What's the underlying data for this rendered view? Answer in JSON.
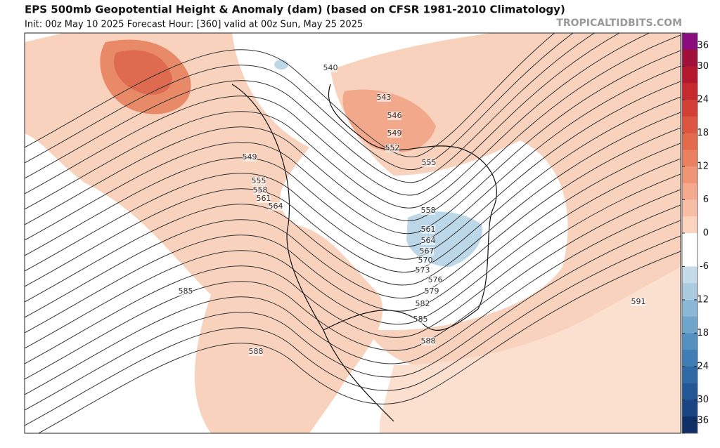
{
  "header": {
    "title": "EPS 500mb Geopotential Height & Anomaly (dam) (based on CFSR 1981-2010 Climatology)",
    "subtitle": "Init: 00z May 10 2025   Forecast Hour: [360]   valid at 00z Sun, May 25 2025",
    "site": "TROPICALTIDBITS.COM"
  },
  "contour_labels": [
    "540",
    "543",
    "546",
    "549",
    "552",
    "555",
    "549",
    "555",
    "558",
    "561",
    "564",
    "558",
    "561",
    "564",
    "567",
    "570",
    "573",
    "576",
    "579",
    "582",
    "585",
    "588",
    "585",
    "588",
    "591"
  ],
  "colorbar": {
    "ticks": [
      36,
      30,
      24,
      18,
      12,
      6,
      0,
      -6,
      -12,
      -18,
      -24,
      -30,
      -36
    ],
    "colors": [
      "#8a0c7f",
      "#a0103a",
      "#b5172e",
      "#c62a2e",
      "#d23f35",
      "#dc5540",
      "#e46a4c",
      "#ea8060",
      "#f09476",
      "#f4a98d",
      "#f8bea5",
      "#fbd3bf",
      "#ffffff",
      "#ffffff",
      "#c6dbe8",
      "#a9cadf",
      "#8cb8d6",
      "#6fa4cb",
      "#5591c0",
      "#3f7eb4",
      "#2f6aa5",
      "#235795",
      "#1a4582",
      "#0f2f66"
    ]
  }
}
